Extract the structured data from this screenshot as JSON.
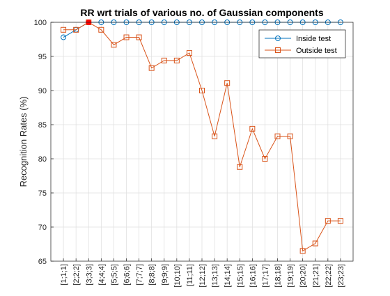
{
  "chart_data": {
    "type": "line",
    "title": "RR wrt trials of various no. of Gaussian components",
    "xlabel": "",
    "ylabel": "Recognition Rates (%)",
    "ylim": [
      65,
      100
    ],
    "yticks": [
      65,
      70,
      75,
      80,
      85,
      90,
      95,
      100
    ],
    "grid": true,
    "legend_position": "top-right",
    "categories": [
      "[1;1;1]",
      "[2;2;2]",
      "[3;3;3]",
      "[4;4;4]",
      "[5;5;5]",
      "[6;6;6]",
      "[7;7;7]",
      "[8;8;8]",
      "[9;9;9]",
      "[10;10]",
      "[11;11]",
      "[12;12]",
      "[13;13]",
      "[14;14]",
      "[15;15]",
      "[16;16]",
      "[17;17]",
      "[18;18]",
      "[19;19]",
      "[20;20]",
      "[21;21]",
      "[22;22]",
      "[23;23]"
    ],
    "series": [
      {
        "name": "Inside test",
        "color": "#0072BD",
        "marker": "circle",
        "values": [
          97.8,
          98.9,
          100,
          100,
          100,
          100,
          100,
          100,
          100,
          100,
          100,
          100,
          100,
          100,
          100,
          100,
          100,
          100,
          100,
          100,
          100,
          100,
          100
        ]
      },
      {
        "name": "Outside test",
        "color": "#D95319",
        "marker": "square",
        "values": [
          98.9,
          98.9,
          100,
          98.9,
          96.7,
          97.8,
          97.8,
          93.3,
          94.4,
          94.4,
          95.5,
          90.0,
          83.3,
          91.1,
          78.8,
          84.4,
          80.0,
          83.3,
          83.3,
          66.5,
          67.6,
          70.9,
          70.9
        ]
      }
    ],
    "highlight": {
      "category_index": 2,
      "value": 100,
      "color": "#FF0000"
    },
    "colors": {
      "axis": "#262626",
      "grid": "#DFDFDF",
      "background": "#FFFFFF"
    }
  }
}
